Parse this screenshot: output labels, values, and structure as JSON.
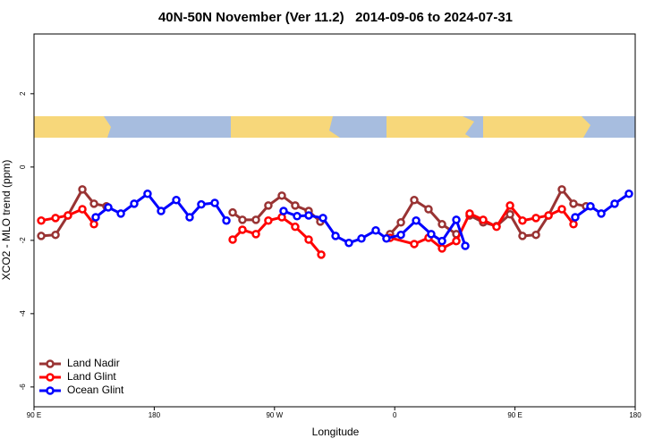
{
  "chart_data": {
    "type": "line",
    "title": "40N-50N November (Ver 11.2)   2014-09-06 to 2024-07-31",
    "xlabel": "Longitude",
    "ylabel": "XCO2 - MLO trend (ppm)",
    "xlim": [
      90,
      540
    ],
    "xticks": [
      {
        "value": 90,
        "label": "90 E"
      },
      180,
      {
        "value": 270,
        "label": "90 W"
      },
      {
        "value": 360,
        "label": "0"
      },
      {
        "value": 450,
        "label": "90 E"
      },
      {
        "value": 540,
        "label": "180"
      }
    ],
    "ylim": [
      -6.54,
      3.63
    ],
    "yticks": [
      2,
      0,
      -2,
      -4,
      -6
    ],
    "legend": "bottom-left",
    "series": [
      {
        "name": "Land Nadir",
        "color": "#993333",
        "x": [
          95.4,
          106.1,
          115.4,
          126.2,
          134.9,
          144.2,
          null,
          238.7,
          246.0,
          256.1,
          265.4,
          275.5,
          285.5,
          295.6,
          304.3,
          null,
          356.5,
          364.6,
          374.6,
          385.3,
          395.4,
          406.1,
          null,
          416.1,
          426.2,
          436.2,
          446.3,
          455.6,
          465.7,
          475.1,
          485.1,
          493.8,
          503.2
        ],
        "values": [
          -1.88,
          -1.85,
          -1.32,
          -0.61,
          -1.0,
          -1.07,
          null,
          -1.24,
          -1.44,
          -1.44,
          -1.05,
          -0.78,
          -1.05,
          -1.2,
          -1.49,
          null,
          -1.83,
          -1.51,
          -0.9,
          -1.15,
          -1.56,
          -1.83,
          null,
          -1.32,
          -1.51,
          -1.61,
          -1.29,
          -1.88,
          -1.85,
          -1.32,
          -0.61,
          -1.0,
          -1.07
        ]
      },
      {
        "name": "Land Glint",
        "color": "#ff0000",
        "x": [
          95.4,
          106.1,
          115.4,
          126.2,
          134.9,
          null,
          238.7,
          246.0,
          256.1,
          265.4,
          275.5,
          285.5,
          295.6,
          305.0,
          null,
          356.5,
          374.6,
          385.3,
          395.4,
          406.1,
          416.1,
          426.2,
          436.2,
          446.3,
          455.6,
          465.7,
          475.1,
          485.1,
          493.8
        ],
        "values": [
          -1.46,
          -1.39,
          -1.32,
          -1.15,
          -1.56,
          null,
          -1.98,
          -1.71,
          -1.83,
          -1.46,
          -1.37,
          -1.63,
          -1.98,
          -2.39,
          null,
          -1.93,
          -2.1,
          -1.93,
          -2.22,
          -2.02,
          -1.27,
          -1.44,
          -1.63,
          -1.05,
          -1.46,
          -1.39,
          -1.32,
          -1.15,
          -1.56
        ]
      },
      {
        "name": "Ocean Glint",
        "color": "#0000ff",
        "x": [
          136.2,
          145.6,
          155.0,
          165.0,
          175.0,
          185.1,
          196.5,
          206.5,
          215.2,
          225.3,
          234.0,
          null,
          276.8,
          286.9,
          295.6,
          306.3,
          315.7,
          325.7,
          335.1,
          345.8,
          353.8,
          364.6,
          376.0,
          387.3,
          395.4,
          406.1,
          412.8,
          null,
          495.1,
          506.5,
          514.6,
          524.6,
          535.3
        ],
        "values": [
          -1.37,
          -1.1,
          -1.27,
          -1.0,
          -0.73,
          -1.2,
          -0.9,
          -1.37,
          -1.02,
          -0.98,
          -1.46,
          null,
          -1.2,
          -1.34,
          -1.32,
          -1.39,
          -1.88,
          -2.07,
          -1.95,
          -1.73,
          -1.95,
          -1.85,
          -1.46,
          -1.83,
          -2.02,
          -1.44,
          -2.15,
          null,
          -1.37,
          -1.07,
          -1.27,
          -1.0,
          -0.73
        ]
      }
    ]
  }
}
